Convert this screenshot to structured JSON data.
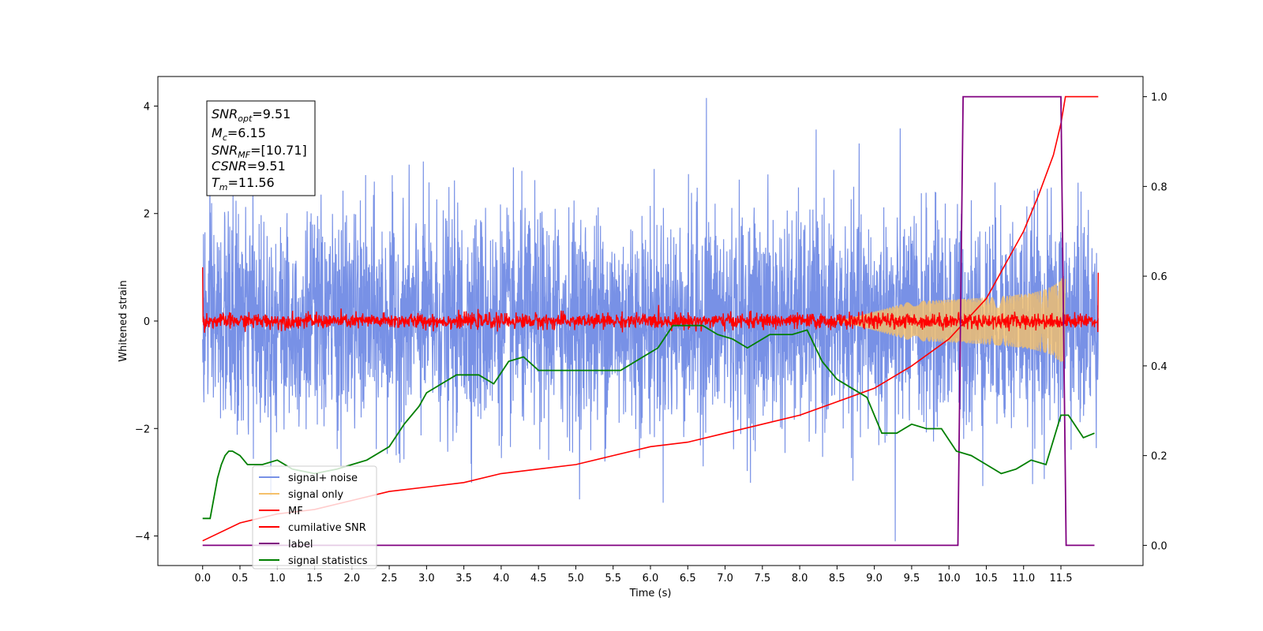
{
  "chart_data": {
    "type": "line",
    "title": "",
    "xlabel": "Time (s)",
    "ylabel_left": "Whitened strain",
    "ylabel_right": "",
    "xlim": [
      -0.6,
      12.6
    ],
    "ylim_left": [
      -4.55,
      4.55
    ],
    "ylim_right": [
      -0.045,
      1.045
    ],
    "xticks": [
      "0.0",
      "0.5",
      "1.0",
      "1.5",
      "2.0",
      "2.5",
      "3.0",
      "3.5",
      "4.0",
      "4.5",
      "5.0",
      "5.5",
      "6.0",
      "6.5",
      "7.0",
      "7.5",
      "8.0",
      "8.5",
      "9.0",
      "9.5",
      "10.0",
      "10.5",
      "11.0",
      "11.5"
    ],
    "yticks_left": [
      "4",
      "2",
      "0",
      "−2",
      "−4"
    ],
    "yticks_right": [
      "1.0",
      "0.8",
      "0.6",
      "0.4",
      "0.2",
      "0.0"
    ],
    "grid": false,
    "legend_position": "lower-left",
    "info_box": {
      "snr_opt": {
        "sym": "SNR",
        "sub": "opt",
        "val": "=9.51"
      },
      "mc": {
        "sym": "M",
        "sub": "c",
        "val": "=6.15"
      },
      "snr_mf": {
        "sym": "SNR",
        "sub": "MF",
        "val": "=[10.71]"
      },
      "csnr": {
        "sym": "CSNR",
        "sub": "",
        "val": "=9.51"
      },
      "tm": {
        "sym": "T",
        "sub": "m",
        "val": "=11.56"
      }
    },
    "series": [
      {
        "name": "signal+ noise",
        "color": "#7891e6",
        "axis": "left",
        "kind": "noise",
        "noise_std": 1.0,
        "x_range": [
          0.0,
          12.0
        ],
        "extremes": [
          [
            6.75,
            4.15
          ],
          [
            9.28,
            -4.1
          ]
        ]
      },
      {
        "name": "signal only",
        "color": "#f5c06a",
        "axis": "left",
        "kind": "chirp",
        "x_range": [
          0.0,
          11.56
        ],
        "amplitude_end": 0.95
      },
      {
        "name": "MF",
        "color": "#ff0000",
        "axis": "left",
        "kind": "noise",
        "noise_std": 0.07,
        "x_range": [
          0.0,
          12.0
        ],
        "start_value": 1.0,
        "end_value": 0.9
      },
      {
        "name": "cumilative SNR",
        "color": "#ff0000",
        "axis": "right",
        "x": [
          0.0,
          0.5,
          1.0,
          1.5,
          2.0,
          2.5,
          3.0,
          3.5,
          4.0,
          4.5,
          5.0,
          5.5,
          6.0,
          6.5,
          7.0,
          7.5,
          8.0,
          8.5,
          9.0,
          9.5,
          10.0,
          10.5,
          11.0,
          11.2,
          11.4,
          11.5,
          11.56,
          12.0
        ],
        "y": [
          0.01,
          0.05,
          0.07,
          0.08,
          0.1,
          0.12,
          0.13,
          0.14,
          0.16,
          0.17,
          0.18,
          0.2,
          0.22,
          0.23,
          0.25,
          0.27,
          0.29,
          0.32,
          0.35,
          0.4,
          0.46,
          0.55,
          0.7,
          0.78,
          0.87,
          0.94,
          1.0,
          1.0
        ]
      },
      {
        "name": "label",
        "color": "#800080",
        "axis": "right",
        "x": [
          0.0,
          10.12,
          10.19,
          11.5,
          11.57,
          11.95
        ],
        "y": [
          0.0,
          0.0,
          1.0,
          1.0,
          0.0,
          0.0
        ]
      },
      {
        "name": "signal statistics",
        "color": "#007f00",
        "axis": "right",
        "x": [
          0.0,
          0.1,
          0.2,
          0.25,
          0.3,
          0.35,
          0.4,
          0.5,
          0.6,
          0.7,
          0.8,
          1.0,
          1.2,
          1.5,
          1.8,
          2.0,
          2.2,
          2.5,
          2.7,
          2.9,
          3.0,
          3.2,
          3.4,
          3.5,
          3.7,
          3.9,
          4.1,
          4.3,
          4.5,
          4.7,
          5.0,
          5.3,
          5.6,
          5.9,
          6.1,
          6.3,
          6.5,
          6.7,
          6.9,
          7.1,
          7.3,
          7.6,
          7.9,
          8.1,
          8.3,
          8.5,
          8.7,
          8.9,
          9.1,
          9.3,
          9.5,
          9.7,
          9.9,
          10.1,
          10.3,
          10.5,
          10.7,
          10.9,
          11.1,
          11.3,
          11.5,
          11.6,
          11.8,
          11.95
        ],
        "y": [
          0.06,
          0.06,
          0.15,
          0.18,
          0.2,
          0.21,
          0.21,
          0.2,
          0.18,
          0.18,
          0.18,
          0.19,
          0.17,
          0.16,
          0.17,
          0.18,
          0.19,
          0.22,
          0.27,
          0.31,
          0.34,
          0.36,
          0.38,
          0.38,
          0.38,
          0.36,
          0.41,
          0.42,
          0.39,
          0.39,
          0.39,
          0.39,
          0.39,
          0.42,
          0.44,
          0.49,
          0.49,
          0.49,
          0.47,
          0.46,
          0.44,
          0.47,
          0.47,
          0.48,
          0.41,
          0.37,
          0.35,
          0.33,
          0.25,
          0.25,
          0.27,
          0.26,
          0.26,
          0.21,
          0.2,
          0.18,
          0.16,
          0.17,
          0.19,
          0.18,
          0.29,
          0.29,
          0.24,
          0.25
        ]
      }
    ]
  }
}
